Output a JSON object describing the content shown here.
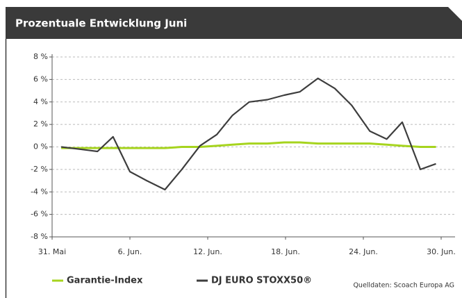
{
  "chart_data": {
    "type": "line",
    "title": "Prozentuale Entwicklung Juni",
    "source": "Quelldaten: Scoach Europa AG",
    "xlim": [
      0,
      30
    ],
    "xticks": [
      {
        "value": 0,
        "label": "31. Mai"
      },
      {
        "value": 6,
        "label": "6. Jun."
      },
      {
        "value": 12,
        "label": "12. Jun."
      },
      {
        "value": 18,
        "label": "18. Jun."
      },
      {
        "value": 24,
        "label": "24. Jun."
      },
      {
        "value": 30,
        "label": "30. Jun."
      }
    ],
    "ylim": [
      -8,
      8
    ],
    "yticks": [
      {
        "value": -8,
        "label": "-8 %"
      },
      {
        "value": -6,
        "label": "-6 %"
      },
      {
        "value": -4,
        "label": "-4 %"
      },
      {
        "value": -2,
        "label": "-2 %"
      },
      {
        "value": 0,
        "label": "0 %"
      },
      {
        "value": 2,
        "label": "2 %"
      },
      {
        "value": 4,
        "label": "4 %"
      },
      {
        "value": 6,
        "label": "6 %"
      },
      {
        "value": 8,
        "label": "8 %"
      }
    ],
    "grid": true,
    "x": [
      0.7,
      2.1,
      3.5,
      4.7,
      6.0,
      7.3,
      8.7,
      10.0,
      11.4,
      12.7,
      13.9,
      15.2,
      16.6,
      17.9,
      19.1,
      20.5,
      21.8,
      23.1,
      24.5,
      25.8,
      27.0,
      28.4,
      29.6
    ],
    "series": [
      {
        "name": "Garantie-Index",
        "color": "#a6d41e",
        "values": [
          -0.1,
          -0.1,
          -0.1,
          -0.1,
          -0.1,
          -0.1,
          -0.1,
          0.0,
          0.0,
          0.1,
          0.2,
          0.3,
          0.3,
          0.4,
          0.4,
          0.3,
          0.3,
          0.3,
          0.3,
          0.2,
          0.1,
          0.0,
          0.0
        ]
      },
      {
        "name": "DJ EURO STOXX50®",
        "color": "#3d3d3d",
        "values": [
          0.0,
          -0.2,
          -0.4,
          0.9,
          -2.2,
          -3.0,
          -3.8,
          -2.0,
          0.1,
          1.1,
          2.8,
          4.0,
          4.2,
          4.6,
          4.9,
          6.1,
          5.2,
          3.7,
          1.4,
          0.7,
          2.2,
          -2.0,
          -1.5
        ]
      }
    ]
  }
}
